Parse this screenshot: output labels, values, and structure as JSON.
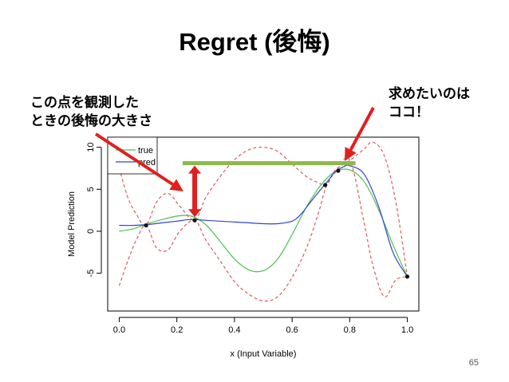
{
  "slide": {
    "title": "Regret (後悔)",
    "note_left": "この点を観測した\nときの後悔の大きさ",
    "note_right": "求めたいのは\nココ！",
    "page_number": "65"
  },
  "colors": {
    "true": "#4fc04f",
    "pred": "#3344cc",
    "ci": "#e05a5a",
    "bar": "#8db84a",
    "arrow": "#e0201f"
  },
  "chart_data": {
    "type": "line",
    "xlabel": "x (Input Variable)",
    "ylabel": "Model Prediction",
    "xlim": [
      -0.04,
      1.04
    ],
    "ylim": [
      -9.5,
      11.2
    ],
    "xticks": [
      "0.0",
      "0.2",
      "0.4",
      "0.6",
      "0.8",
      "1.0"
    ],
    "yticks": [
      "-5",
      "0",
      "5",
      "10"
    ],
    "legend": {
      "position": "top-left",
      "entries": [
        "true",
        "pred"
      ]
    },
    "series": [
      {
        "name": "true",
        "x": [
          0.0,
          0.05,
          0.1,
          0.15,
          0.2,
          0.25,
          0.3,
          0.35,
          0.4,
          0.45,
          0.5,
          0.55,
          0.6,
          0.65,
          0.7,
          0.75,
          0.8,
          0.85,
          0.9,
          0.95,
          1.0
        ],
        "y": [
          0.0,
          0.3,
          0.9,
          1.4,
          1.8,
          1.8,
          0.8,
          -1.2,
          -3.3,
          -4.6,
          -4.7,
          -3.3,
          -0.4,
          2.9,
          5.5,
          7.1,
          7.3,
          5.9,
          2.6,
          -1.6,
          -5.4
        ]
      },
      {
        "name": "pred",
        "x": [
          0.0,
          0.05,
          0.1,
          0.15,
          0.2,
          0.25,
          0.3,
          0.35,
          0.4,
          0.45,
          0.5,
          0.55,
          0.6,
          0.63,
          0.66,
          0.7,
          0.72,
          0.75,
          0.78,
          0.8,
          0.85,
          0.9,
          0.95,
          1.0
        ],
        "y": [
          0.7,
          0.7,
          0.8,
          1.0,
          1.2,
          1.4,
          1.3,
          1.2,
          1.1,
          1.0,
          0.9,
          0.9,
          1.2,
          2.0,
          3.3,
          5.0,
          5.8,
          7.1,
          7.7,
          7.8,
          6.8,
          3.0,
          -2.5,
          -5.4
        ]
      },
      {
        "name": "",
        "x": [
          0.0,
          0.03,
          0.06,
          0.093,
          0.13,
          0.17,
          0.21,
          0.262,
          0.3,
          0.35,
          0.4,
          0.45,
          0.5,
          0.55,
          0.6,
          0.65,
          0.69,
          0.72,
          0.75,
          0.8,
          0.85,
          0.88,
          0.92,
          0.96,
          1.0
        ],
        "y": [
          -6.5,
          -3.5,
          -1.0,
          0.7,
          -2.0,
          -2.2,
          0.0,
          1.3,
          -1.0,
          -3.5,
          -6.0,
          -7.5,
          -8.3,
          -7.8,
          -5.5,
          -2.0,
          2.0,
          5.5,
          7.0,
          8.5,
          1.0,
          -4.0,
          -7.8,
          -5.8,
          -5.4
        ]
      },
      {
        "name": "",
        "x": [
          0.0,
          0.03,
          0.06,
          0.093,
          0.13,
          0.17,
          0.21,
          0.262,
          0.3,
          0.35,
          0.4,
          0.45,
          0.5,
          0.55,
          0.6,
          0.65,
          0.69,
          0.72,
          0.75,
          0.8,
          0.85,
          0.88,
          0.92,
          0.96,
          1.0
        ],
        "y": [
          7.5,
          4.0,
          2.0,
          0.7,
          3.5,
          4.5,
          3.0,
          1.3,
          4.0,
          6.5,
          8.5,
          9.7,
          10.0,
          9.5,
          8.0,
          6.5,
          5.8,
          5.5,
          7.3,
          8.4,
          9.8,
          10.6,
          9.0,
          3.5,
          -5.4
        ]
      }
    ],
    "observations": [
      {
        "x": 0.093,
        "y": 0.7
      },
      {
        "x": 0.262,
        "y": 1.3
      },
      {
        "x": 0.715,
        "y": 5.5
      },
      {
        "x": 0.76,
        "y": 7.2
      },
      {
        "x": 1.0,
        "y": -5.4
      }
    ],
    "annotations": {
      "max_bar": {
        "x_start": 0.22,
        "x_end": 0.82,
        "y": 8.1
      },
      "regret_arrow": {
        "x": 0.262,
        "y_from": 1.3,
        "y_to": 8.1
      }
    }
  }
}
